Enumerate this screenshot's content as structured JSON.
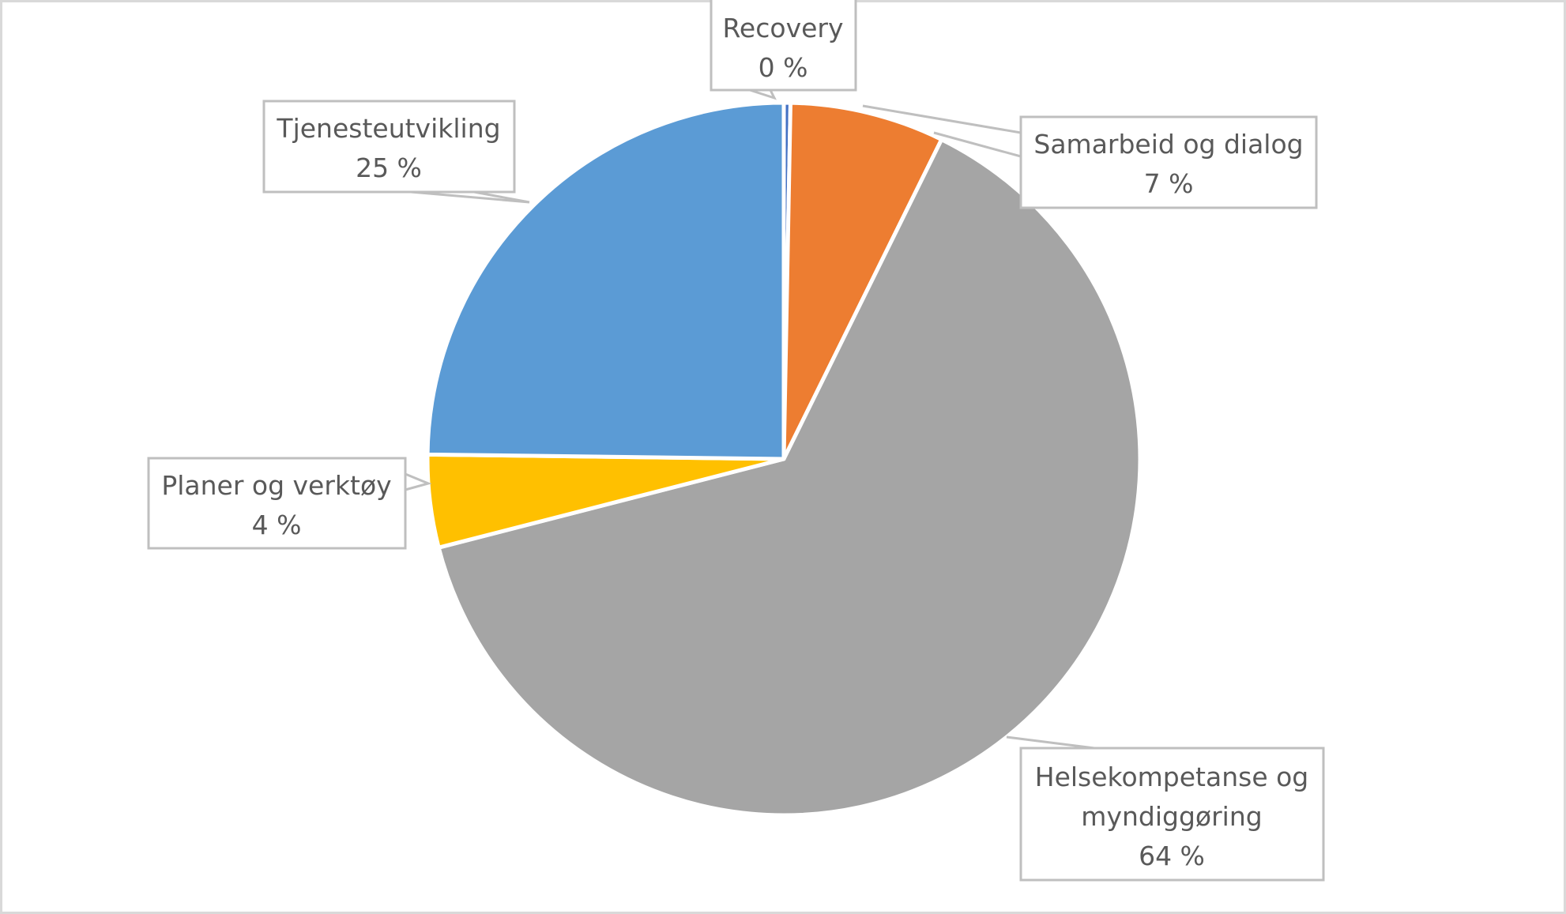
{
  "chart_data": {
    "type": "pie",
    "title": "",
    "categories": [
      "Recovery",
      "Samarbeid og dialog",
      "Helsekompetanse og myndiggøring",
      "Planer og verktøy",
      "Tjenesteutvikling"
    ],
    "values": [
      0,
      7,
      64,
      4,
      25
    ],
    "value_labels": [
      "0 %",
      "7 %",
      "64 %",
      "4 %",
      "25 %"
    ],
    "colors": [
      "#4472c4",
      "#ed7d31",
      "#a5a5a5",
      "#ffc000",
      "#5b9bd5"
    ],
    "start_angle": 0,
    "direction": "clockwise",
    "legend": "none",
    "data_labels": "callouts with category name and percentage"
  },
  "labels": {
    "recovery": {
      "name": "Recovery",
      "pct": "0 %"
    },
    "samarbeid": {
      "name": "Samarbeid og dialog",
      "pct": "7 %"
    },
    "helse": {
      "name_line1": "Helsekompetanse og",
      "name_line2": "myndiggøring",
      "pct": "64 %"
    },
    "planer": {
      "name": "Planer og verktøy",
      "pct": "4 %"
    },
    "tjeneste": {
      "name": "Tjenesteutvikling",
      "pct": "25 %"
    }
  }
}
